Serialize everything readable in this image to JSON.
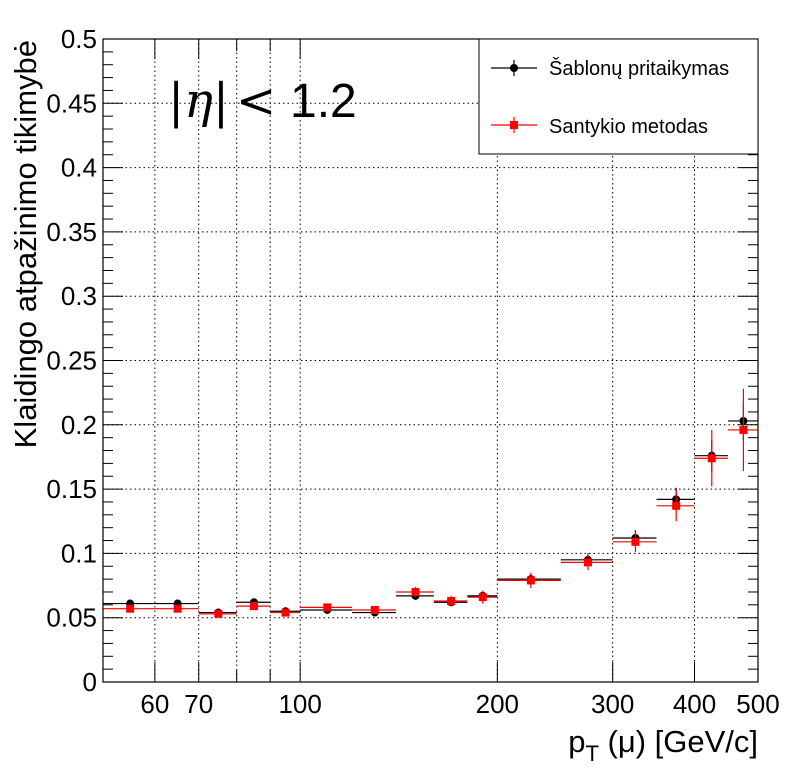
{
  "chart_data": {
    "type": "scatter",
    "xlabel": "p_T (μ) [GeV/c]",
    "xlabel_main": "p",
    "xlabel_sub": "T",
    "xlabel_rest": " (μ) [GeV/c]",
    "ylabel": "Klaidingo atpažinimo tikimybė",
    "xscale": "log",
    "xlim": [
      50,
      500
    ],
    "ylim": [
      0,
      0.5
    ],
    "grid": true,
    "legend_position": "top-right",
    "annotation": {
      "eta_symbol": "|η|",
      "op": "<",
      "value": "1.2"
    },
    "x_ticks": [
      {
        "v": 60,
        "label": "60"
      },
      {
        "v": 70,
        "label": "70"
      },
      {
        "v": 100,
        "label": "100"
      },
      {
        "v": 200,
        "label": "200"
      },
      {
        "v": 300,
        "label": "300"
      },
      {
        "v": 400,
        "label": "400"
      },
      {
        "v": 500,
        "label": "500"
      }
    ],
    "y_ticks": [
      {
        "v": 0,
        "label": "0"
      },
      {
        "v": 0.05,
        "label": "0.05"
      },
      {
        "v": 0.1,
        "label": "0.1"
      },
      {
        "v": 0.15,
        "label": "0.15"
      },
      {
        "v": 0.2,
        "label": "0.2"
      },
      {
        "v": 0.25,
        "label": "0.25"
      },
      {
        "v": 0.3,
        "label": "0.3"
      },
      {
        "v": 0.35,
        "label": "0.35"
      },
      {
        "v": 0.4,
        "label": "0.4"
      },
      {
        "v": 0.45,
        "label": "0.45"
      },
      {
        "v": 0.5,
        "label": "0.5"
      }
    ],
    "series": [
      {
        "name": "Šablonų pritaikymas",
        "color": "#000000",
        "marker": "circle",
        "points": [
          {
            "xlo": 50,
            "x": 55,
            "xhi": 60,
            "y": 0.061,
            "err": 0.002
          },
          {
            "xlo": 60,
            "x": 65,
            "xhi": 70,
            "y": 0.061,
            "err": 0.002
          },
          {
            "xlo": 70,
            "x": 75,
            "xhi": 80,
            "y": 0.054,
            "err": 0.002
          },
          {
            "xlo": 80,
            "x": 85,
            "xhi": 90,
            "y": 0.062,
            "err": 0.002
          },
          {
            "xlo": 90,
            "x": 95,
            "xhi": 100,
            "y": 0.055,
            "err": 0.002
          },
          {
            "xlo": 100,
            "x": 110,
            "xhi": 120,
            "y": 0.056,
            "err": 0.002
          },
          {
            "xlo": 120,
            "x": 130,
            "xhi": 140,
            "y": 0.054,
            "err": 0.002
          },
          {
            "xlo": 140,
            "x": 150,
            "xhi": 160,
            "y": 0.067,
            "err": 0.003
          },
          {
            "xlo": 160,
            "x": 170,
            "xhi": 180,
            "y": 0.062,
            "err": 0.003
          },
          {
            "xlo": 180,
            "x": 190,
            "xhi": 200,
            "y": 0.067,
            "err": 0.003
          },
          {
            "xlo": 200,
            "x": 225,
            "xhi": 250,
            "y": 0.08,
            "err": 0.004
          },
          {
            "xlo": 250,
            "x": 275,
            "xhi": 300,
            "y": 0.095,
            "err": 0.005
          },
          {
            "xlo": 300,
            "x": 325,
            "xhi": 350,
            "y": 0.112,
            "err": 0.006
          },
          {
            "xlo": 350,
            "x": 375,
            "xhi": 400,
            "y": 0.142,
            "err": 0.009
          },
          {
            "xlo": 400,
            "x": 425,
            "xhi": 450,
            "y": 0.176,
            "err": 0.012
          },
          {
            "xlo": 450,
            "x": 475,
            "xhi": 500,
            "y": 0.203,
            "err": 0.015
          }
        ]
      },
      {
        "name": "Santykio metodas",
        "color": "#ff0000",
        "marker": "square",
        "points": [
          {
            "xlo": 50,
            "x": 55,
            "xhi": 60,
            "y": 0.057,
            "err": 0.003
          },
          {
            "xlo": 60,
            "x": 65,
            "xhi": 70,
            "y": 0.057,
            "err": 0.003
          },
          {
            "xlo": 70,
            "x": 75,
            "xhi": 80,
            "y": 0.053,
            "err": 0.003
          },
          {
            "xlo": 80,
            "x": 85,
            "xhi": 90,
            "y": 0.059,
            "err": 0.003
          },
          {
            "xlo": 90,
            "x": 95,
            "xhi": 100,
            "y": 0.054,
            "err": 0.003
          },
          {
            "xlo": 100,
            "x": 110,
            "xhi": 120,
            "y": 0.058,
            "err": 0.003
          },
          {
            "xlo": 120,
            "x": 130,
            "xhi": 140,
            "y": 0.056,
            "err": 0.003
          },
          {
            "xlo": 140,
            "x": 150,
            "xhi": 160,
            "y": 0.07,
            "err": 0.004
          },
          {
            "xlo": 160,
            "x": 170,
            "xhi": 180,
            "y": 0.063,
            "err": 0.004
          },
          {
            "xlo": 180,
            "x": 190,
            "xhi": 200,
            "y": 0.066,
            "err": 0.005
          },
          {
            "xlo": 200,
            "x": 225,
            "xhi": 250,
            "y": 0.079,
            "err": 0.006
          },
          {
            "xlo": 250,
            "x": 275,
            "xhi": 300,
            "y": 0.093,
            "err": 0.006
          },
          {
            "xlo": 300,
            "x": 325,
            "xhi": 350,
            "y": 0.109,
            "err": 0.008
          },
          {
            "xlo": 350,
            "x": 375,
            "xhi": 400,
            "y": 0.137,
            "err": 0.012
          },
          {
            "xlo": 400,
            "x": 425,
            "xhi": 450,
            "y": 0.174,
            "err": 0.022
          },
          {
            "xlo": 450,
            "x": 475,
            "xhi": 500,
            "y": 0.196,
            "err": 0.032
          }
        ]
      }
    ]
  }
}
